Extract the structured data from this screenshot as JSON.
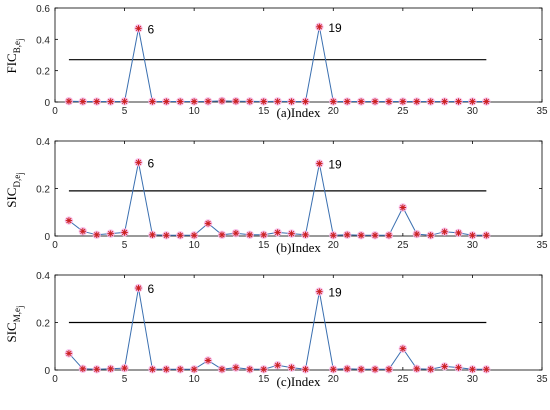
{
  "chart_data": [
    {
      "type": "line",
      "ylabel_main": "FIC",
      "ylabel_sub": "B",
      "ylabel_sub2": "e",
      "ylabel_sub3": "j",
      "xlabel": "(a)Index",
      "xlim": [
        0,
        35
      ],
      "ylim": [
        0,
        0.6
      ],
      "xticks": [
        "0",
        "5",
        "10",
        "15",
        "20",
        "25",
        "30",
        "35"
      ],
      "yticks": [
        "0",
        "0.2",
        "0.4",
        "0.6"
      ],
      "threshold": 0.27,
      "series": [
        {
          "x": [
            1,
            2,
            3,
            4,
            5,
            6,
            7,
            8,
            9,
            10,
            11,
            12,
            13,
            14,
            15,
            16,
            17,
            18,
            19,
            20,
            21,
            22,
            23,
            24,
            25,
            26,
            27,
            28,
            29,
            30,
            31
          ],
          "values": [
            0.005,
            0.003,
            0.003,
            0.003,
            0.004,
            0.47,
            0.003,
            0.003,
            0.003,
            0.003,
            0.004,
            0.007,
            0.005,
            0.004,
            0.003,
            0.004,
            0.003,
            0.003,
            0.48,
            0.003,
            0.003,
            0.003,
            0.003,
            0.003,
            0.003,
            0.003,
            0.003,
            0.003,
            0.003,
            0.003,
            0.003
          ]
        }
      ],
      "annotations": [
        {
          "x": 6,
          "y": 0.47,
          "text": "6"
        },
        {
          "x": 19,
          "y": 0.48,
          "text": "19"
        }
      ]
    },
    {
      "type": "line",
      "ylabel_main": "SIC",
      "ylabel_sub": "D",
      "ylabel_sub2": "e",
      "ylabel_sub3": "j",
      "xlabel": "(b)Index",
      "xlim": [
        0,
        35
      ],
      "ylim": [
        0,
        0.4
      ],
      "xticks": [
        "0",
        "5",
        "10",
        "15",
        "20",
        "25",
        "30",
        "35"
      ],
      "yticks": [
        "0",
        "0.2",
        "0.4"
      ],
      "threshold": 0.19,
      "series": [
        {
          "x": [
            1,
            2,
            3,
            4,
            5,
            6,
            7,
            8,
            9,
            10,
            11,
            12,
            13,
            14,
            15,
            16,
            17,
            18,
            19,
            20,
            21,
            22,
            23,
            24,
            25,
            26,
            27,
            28,
            29,
            30,
            31
          ],
          "values": [
            0.065,
            0.02,
            0.005,
            0.01,
            0.015,
            0.31,
            0.005,
            0.003,
            0.003,
            0.003,
            0.053,
            0.005,
            0.012,
            0.005,
            0.005,
            0.015,
            0.01,
            0.005,
            0.305,
            0.003,
            0.005,
            0.003,
            0.003,
            0.003,
            0.12,
            0.008,
            0.003,
            0.018,
            0.013,
            0.003,
            0.003
          ]
        }
      ],
      "annotations": [
        {
          "x": 6,
          "y": 0.31,
          "text": "6"
        },
        {
          "x": 19,
          "y": 0.305,
          "text": "19"
        }
      ]
    },
    {
      "type": "line",
      "ylabel_main": "SIC",
      "ylabel_sub": "M",
      "ylabel_sub2": "e",
      "ylabel_sub3": "j",
      "xlabel": "(c)Index",
      "xlim": [
        0,
        35
      ],
      "ylim": [
        0,
        0.4
      ],
      "xticks": [
        "0",
        "5",
        "10",
        "15",
        "20",
        "25",
        "30",
        "35"
      ],
      "yticks": [
        "0",
        "0.2",
        "0.4"
      ],
      "threshold": 0.2,
      "series": [
        {
          "x": [
            1,
            2,
            3,
            4,
            5,
            6,
            7,
            8,
            9,
            10,
            11,
            12,
            13,
            14,
            15,
            16,
            17,
            18,
            19,
            20,
            21,
            22,
            23,
            24,
            25,
            26,
            27,
            28,
            29,
            30,
            31
          ],
          "values": [
            0.07,
            0.005,
            0.003,
            0.005,
            0.008,
            0.345,
            0.003,
            0.003,
            0.003,
            0.003,
            0.04,
            0.003,
            0.01,
            0.003,
            0.003,
            0.02,
            0.01,
            0.003,
            0.33,
            0.003,
            0.005,
            0.003,
            0.003,
            0.003,
            0.09,
            0.005,
            0.003,
            0.015,
            0.01,
            0.003,
            0.003
          ]
        }
      ],
      "annotations": [
        {
          "x": 6,
          "y": 0.345,
          "text": "6"
        },
        {
          "x": 19,
          "y": 0.33,
          "text": "19"
        }
      ]
    }
  ],
  "colors": {
    "line": "#3a6fb0",
    "threshold": "#000000",
    "marker": "#cc2020",
    "marker_glow": "#f7b6e6",
    "axis": "#000000"
  }
}
